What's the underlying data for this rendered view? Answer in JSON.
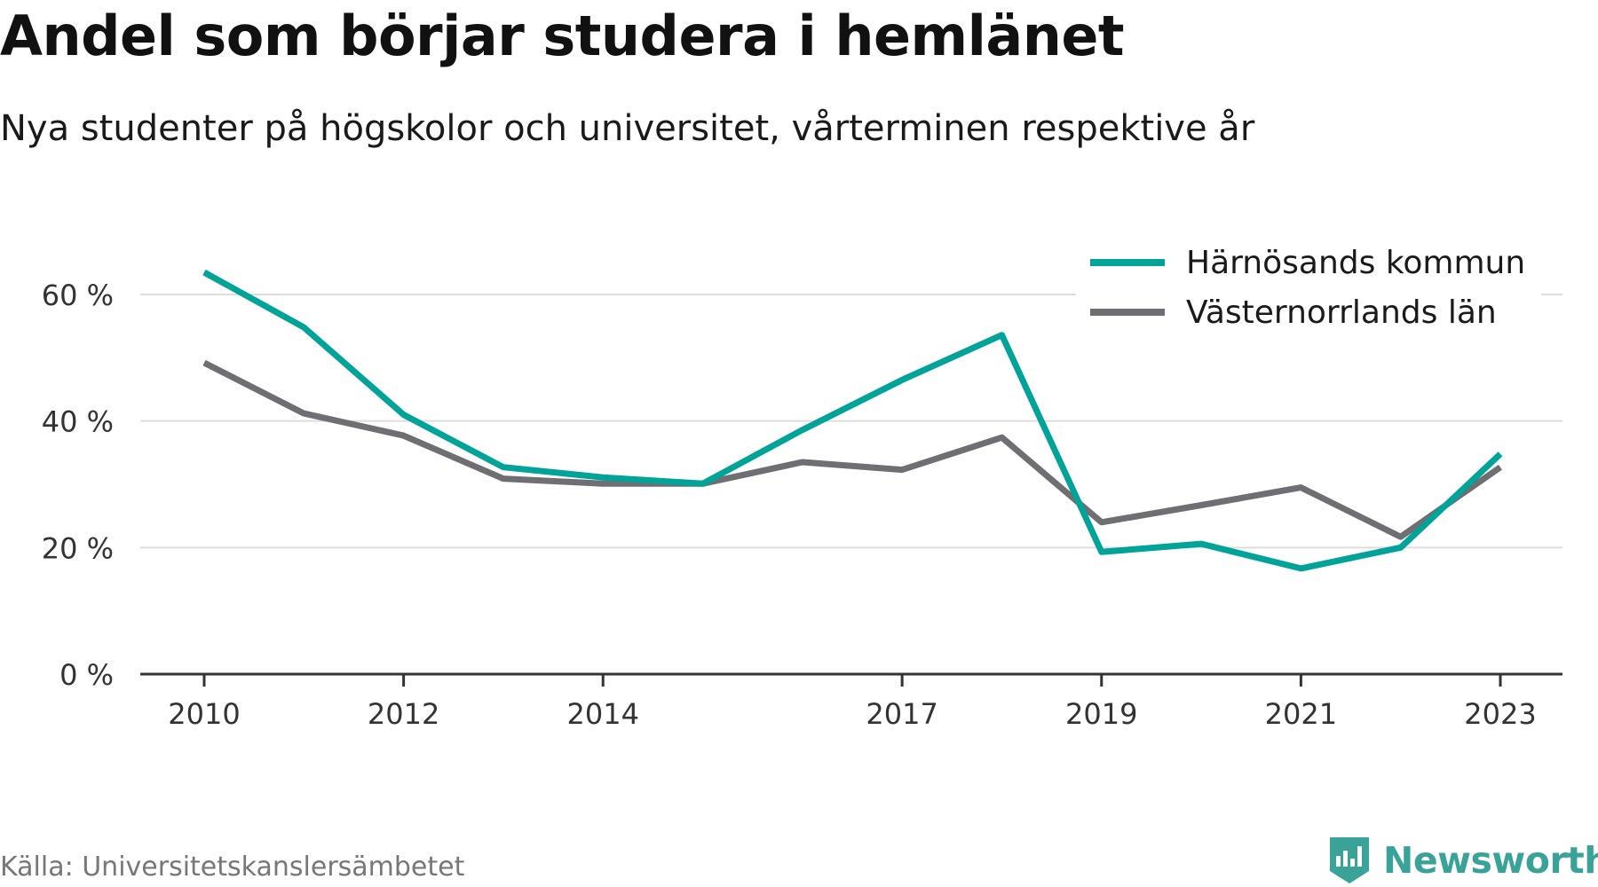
{
  "header": {
    "title": "Andel som börjar studera i hemlänet",
    "subtitle": "Nya studenter på högskolor och universitet, vårterminen respektive år"
  },
  "footer": {
    "source": "Källa: Universitetskanslersämbetet",
    "brand": "Newsworthy"
  },
  "colors": {
    "accent": "#00a398",
    "secondary": "#6f6e73",
    "grid": "#dddddd",
    "axis": "#333333",
    "brand": "#3aa399"
  },
  "icons": {
    "brand": "newsworthy-logo-icon"
  },
  "chart_data": {
    "type": "line",
    "title": "Andel som börjar studera i hemlänet",
    "subtitle": "Nya studenter på högskolor och universitet, vårterminen respektive år",
    "x": [
      2010,
      2011,
      2012,
      2013,
      2014,
      2015,
      2016,
      2017,
      2018,
      2019,
      2020,
      2021,
      2022,
      2023
    ],
    "x_ticks": [
      2010,
      2012,
      2014,
      2017,
      2019,
      2021,
      2023
    ],
    "y_ticks": [
      0,
      20,
      40,
      60
    ],
    "y_tick_labels": [
      "0 %",
      "20 %",
      "40 %",
      "60 %"
    ],
    "ylim": [
      0,
      70
    ],
    "xlabel": "",
    "ylabel": "",
    "grid": true,
    "legend_position": "top-right",
    "series": [
      {
        "name": "Härnösands kommun",
        "color": "#00a398",
        "values": [
          63.5,
          54.8,
          41.0,
          32.7,
          31.1,
          30.1,
          38.6,
          46.5,
          53.6,
          19.3,
          20.6,
          16.7,
          20.0,
          34.8
        ]
      },
      {
        "name": "Västernorrlands län",
        "color": "#6f6e73",
        "values": [
          49.2,
          41.2,
          37.7,
          30.9,
          30.1,
          30.1,
          33.5,
          32.3,
          37.4,
          24.0,
          26.7,
          29.5,
          21.7,
          32.7
        ]
      }
    ]
  }
}
